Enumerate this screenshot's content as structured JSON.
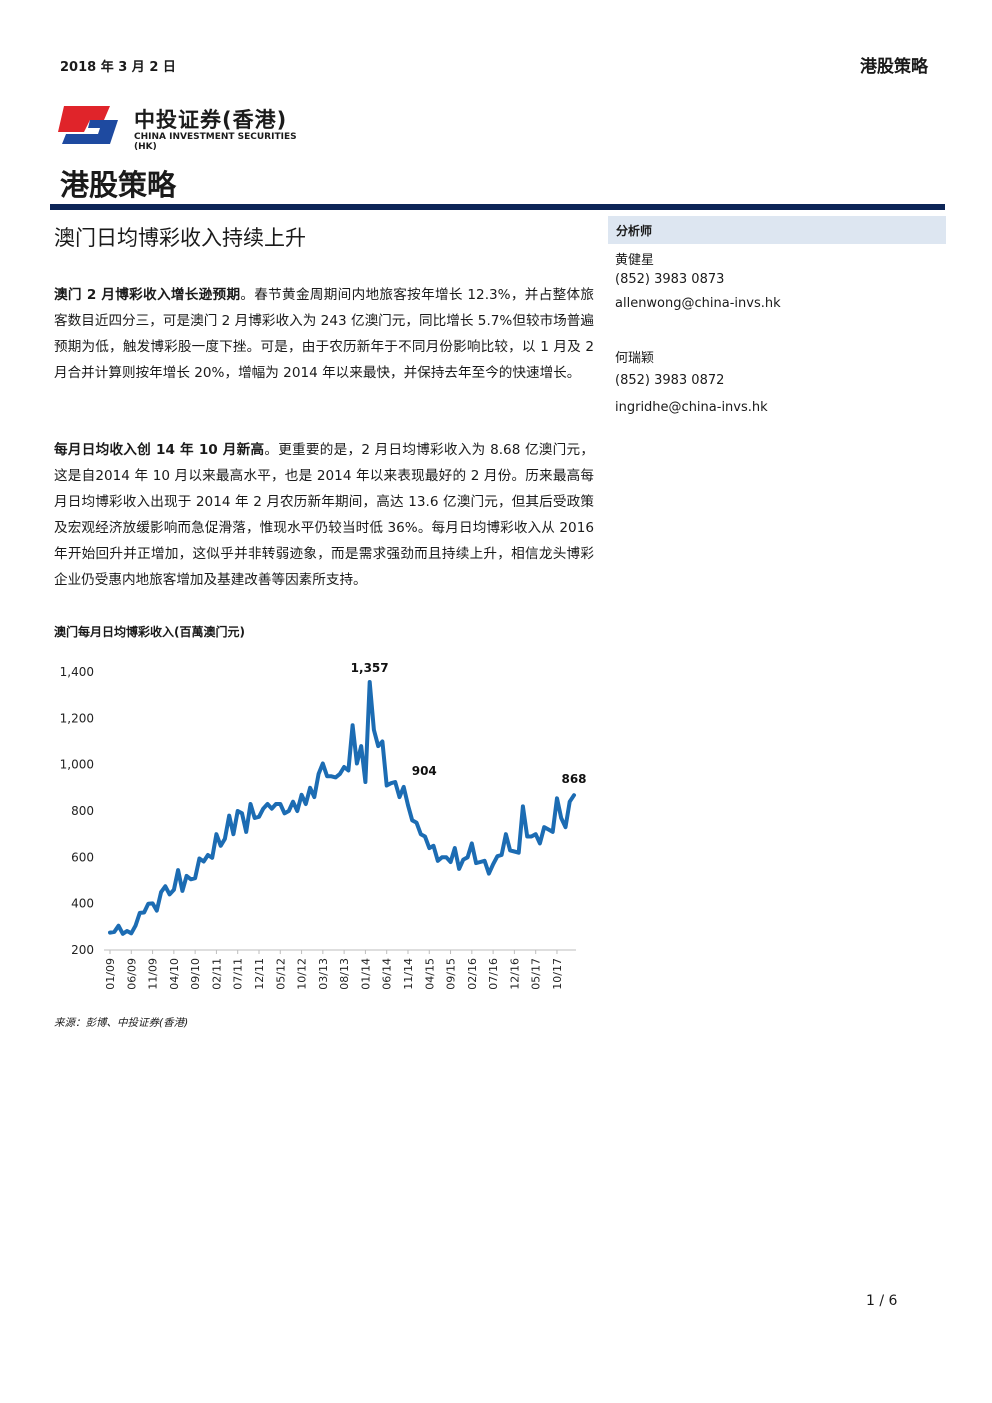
{
  "header": {
    "date": "2018 年 3 月 2 日",
    "section": "港股策略"
  },
  "logo": {
    "name_cn": "中投证券(香港)",
    "name_en": "CHINA INVESTMENT SECURITIES (HK)",
    "colors": {
      "red": "#e0242a",
      "blue": "#1e4aa0"
    }
  },
  "page_heading": "港股策略",
  "article": {
    "title": "澳门日均博彩收入持续上升",
    "p1_lead": "澳门 2 月博彩收入增长逊预期",
    "p1_body": "。春节黄金周期间内地旅客按年增长 12.3%，并占整体旅客数目近四分三，可是澳门 2 月博彩收入为 243 亿澳门元，同比增长 5.7%但较市场普遍预期为低，触发博彩股一度下挫。可是，由于农历新年于不同月份影响比较，以 1 月及 2 月合并计算则按年增长 20%，增幅为 2014 年以来最快，并保持去年至今的快速增长。",
    "p2_lead": "每月日均收入创 14 年 10 月新高",
    "p2_body": "。更重要的是，2 月日均博彩收入为 8.68 亿澳门元，这是自2014 年 10 月以来最高水平，也是 2014 年以来表现最好的 2 月份。历来最高每月日均博彩收入出现于 2014 年 2 月农历新年期间，高达 13.6 亿澳门元，但其后受政策及宏观经济放缓影响而急促滑落，惟现水平仍较当时低 36%。每月日均博彩收入从 2016 年开始回升并正增加，这似乎并非转弱迹象，而是需求强劲而且持续上升，相信龙头博彩企业仍受惠内地旅客增加及基建改善等因素所支持。"
  },
  "sidebar": {
    "heading": "分析师",
    "analysts": [
      {
        "name": "黄健星",
        "phone": "(852) 3983 0873",
        "email": "allenwong@china-invs.hk"
      },
      {
        "name": "何瑞颖",
        "phone": "(852) 3983 0872",
        "email": "ingridhe@china-invs.hk"
      }
    ]
  },
  "chart_title": "澳门每月日均博彩收入(百萬澳门元)",
  "chart_data": {
    "type": "line",
    "title": "澳门每月日均博彩收入(百萬澳门元)",
    "color": "#1c6cb3",
    "ylim": [
      200,
      1400
    ],
    "yticks": [
      "1,400",
      "1,200",
      "1,000",
      "800",
      "600",
      "400",
      "200"
    ],
    "xtick_labels": [
      "01/09",
      "06/09",
      "11/09",
      "04/10",
      "09/10",
      "02/11",
      "07/11",
      "12/11",
      "05/12",
      "10/12",
      "03/13",
      "08/13",
      "01/14",
      "06/14",
      "11/14",
      "04/15",
      "09/15",
      "02/16",
      "07/16",
      "12/16",
      "05/17",
      "10/17"
    ],
    "annotations": [
      {
        "label": "1,357",
        "x": "02/14",
        "y": 1357
      },
      {
        "label": "904",
        "x": "10/14",
        "y": 904
      },
      {
        "label": "868",
        "x": "02/18",
        "y": 868
      }
    ],
    "x": [
      "01/09",
      "02/09",
      "03/09",
      "04/09",
      "05/09",
      "06/09",
      "07/09",
      "08/09",
      "09/09",
      "10/09",
      "11/09",
      "12/09",
      "01/10",
      "02/10",
      "03/10",
      "04/10",
      "05/10",
      "06/10",
      "07/10",
      "08/10",
      "09/10",
      "10/10",
      "11/10",
      "12/10",
      "01/11",
      "02/11",
      "03/11",
      "04/11",
      "05/11",
      "06/11",
      "07/11",
      "08/11",
      "09/11",
      "10/11",
      "11/11",
      "12/11",
      "01/12",
      "02/12",
      "03/12",
      "04/12",
      "05/12",
      "06/12",
      "07/12",
      "08/12",
      "09/12",
      "10/12",
      "11/12",
      "12/12",
      "01/13",
      "02/13",
      "03/13",
      "04/13",
      "05/13",
      "06/13",
      "07/13",
      "08/13",
      "09/13",
      "10/13",
      "11/13",
      "12/13",
      "01/14",
      "02/14",
      "03/14",
      "04/14",
      "05/14",
      "06/14",
      "07/14",
      "08/14",
      "09/14",
      "10/14",
      "11/14",
      "12/14",
      "01/15",
      "02/15",
      "03/15",
      "04/15",
      "05/15",
      "06/15",
      "07/15",
      "08/15",
      "09/15",
      "10/15",
      "11/15",
      "12/15",
      "01/16",
      "02/16",
      "03/16",
      "04/16",
      "05/16",
      "06/16",
      "07/16",
      "08/16",
      "09/16",
      "10/16",
      "11/16",
      "12/16",
      "01/17",
      "02/17",
      "03/17",
      "04/17",
      "05/17",
      "06/17",
      "07/17",
      "08/17",
      "09/17",
      "10/17",
      "11/17",
      "12/17",
      "01/18",
      "02/18"
    ],
    "values": [
      275,
      278,
      305,
      270,
      282,
      272,
      305,
      360,
      362,
      400,
      401,
      370,
      450,
      475,
      440,
      460,
      545,
      455,
      520,
      505,
      510,
      595,
      582,
      610,
      598,
      700,
      650,
      680,
      780,
      700,
      800,
      790,
      710,
      830,
      770,
      775,
      810,
      830,
      810,
      830,
      830,
      790,
      800,
      840,
      800,
      870,
      830,
      900,
      860,
      960,
      1005,
      950,
      950,
      945,
      960,
      990,
      975,
      1170,
      1005,
      1080,
      925,
      1357,
      1150,
      1080,
      1100,
      910,
      920,
      925,
      860,
      904,
      825,
      760,
      750,
      700,
      690,
      640,
      650,
      585,
      600,
      600,
      580,
      640,
      550,
      590,
      600,
      660,
      575,
      580,
      585,
      530,
      570,
      605,
      610,
      700,
      630,
      625,
      620,
      820,
      690,
      690,
      700,
      660,
      730,
      720,
      710,
      855,
      770,
      730,
      840,
      868
    ]
  },
  "source": "来源：彭博、中投证券(香港)",
  "page_number": "1 / 6"
}
